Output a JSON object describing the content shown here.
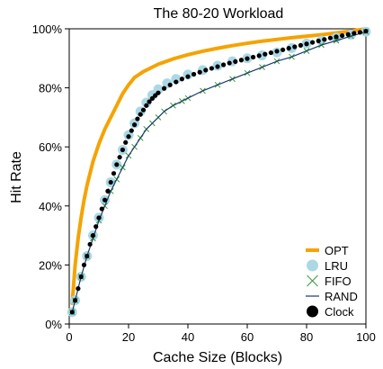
{
  "chart_data": {
    "type": "line",
    "title": "The 80-20 Workload",
    "xlabel": "Cache Size (Blocks)",
    "ylabel": "Hit Rate",
    "xlim": [
      0,
      100
    ],
    "ylim": [
      0,
      100
    ],
    "x_ticks": [
      0,
      20,
      40,
      60,
      80,
      100
    ],
    "x_tick_labels": [
      "0",
      "20",
      "40",
      "60",
      "80",
      "100"
    ],
    "y_ticks": [
      0,
      20,
      40,
      60,
      80,
      100
    ],
    "y_tick_labels": [
      "0%",
      "20%",
      "40%",
      "60%",
      "80%",
      "100%"
    ],
    "grid": false,
    "legend_position": "bottom-right",
    "colors": {
      "OPT": "#f5a300",
      "LRU": "#acd8e6",
      "FIFO": "#3a9a3a",
      "RAND": "#1c3a6b",
      "Clock": "#000000"
    },
    "series": [
      {
        "name": "OPT",
        "style": "thick-line",
        "x": [
          1,
          2,
          3,
          4,
          5,
          6,
          8,
          10,
          12,
          14,
          16,
          18,
          20,
          22,
          25,
          30,
          35,
          40,
          45,
          50,
          55,
          60,
          65,
          70,
          75,
          80,
          85,
          90,
          95,
          100
        ],
        "y": [
          7,
          20,
          29,
          36,
          42,
          47,
          55,
          61,
          66,
          70,
          74,
          78,
          81,
          83.5,
          85.5,
          88,
          89.8,
          91.2,
          92.4,
          93.4,
          94.3,
          95.1,
          95.8,
          96.4,
          97,
          97.5,
          98,
          98.6,
          99.2,
          100
        ]
      },
      {
        "name": "LRU",
        "style": "large-light-dot",
        "x": [
          1,
          2,
          4,
          6,
          8,
          10,
          12,
          14,
          16,
          18,
          20,
          22,
          24,
          26,
          28,
          30,
          33,
          36,
          40,
          45,
          50,
          55,
          60,
          65,
          70,
          75,
          80,
          85,
          90,
          95,
          100
        ],
        "y": [
          4,
          8,
          16,
          23,
          30,
          36,
          42,
          48,
          54,
          59,
          64,
          68,
          72,
          75,
          77.5,
          79.5,
          81.5,
          83,
          84.5,
          86,
          87.5,
          89,
          90,
          91,
          92,
          93.5,
          95,
          96,
          97,
          98,
          99
        ]
      },
      {
        "name": "FIFO",
        "style": "x-marker",
        "x": [
          1,
          2,
          4,
          6,
          8,
          10,
          12,
          14,
          16,
          18,
          20,
          22,
          24,
          26,
          28,
          30,
          32,
          35,
          38,
          40,
          45,
          50,
          55,
          60,
          65,
          70,
          75,
          80,
          85,
          90,
          95,
          100
        ],
        "y": [
          4,
          8,
          16,
          23,
          29,
          35,
          40,
          45,
          49,
          53,
          57,
          60,
          63,
          66,
          68,
          70,
          72,
          74,
          75.5,
          76.5,
          79,
          81,
          83,
          85,
          87,
          89,
          90.5,
          92.5,
          94.5,
          96,
          97.5,
          99
        ]
      },
      {
        "name": "RAND",
        "style": "thin-line",
        "x": [
          1,
          2,
          4,
          6,
          8,
          10,
          12,
          14,
          16,
          18,
          20,
          22,
          24,
          26,
          28,
          30,
          32,
          35,
          38,
          40,
          45,
          50,
          55,
          60,
          65,
          70,
          75,
          80,
          85,
          90,
          95,
          100
        ],
        "y": [
          4,
          8,
          16,
          23,
          29,
          35,
          40,
          45,
          49,
          53,
          57,
          60,
          63,
          66,
          68,
          70,
          72,
          74,
          75.5,
          76.5,
          79,
          81,
          83,
          85,
          87,
          89,
          90.5,
          92.5,
          94.5,
          96,
          97.5,
          99
        ]
      },
      {
        "name": "Clock",
        "style": "dot",
        "x": [
          1,
          2,
          3,
          4,
          5,
          6,
          7,
          8,
          9,
          10,
          11,
          12,
          13,
          14,
          15,
          16,
          17,
          18,
          19,
          20,
          21,
          22,
          23,
          24,
          25,
          26,
          27,
          28,
          29,
          30,
          32,
          34,
          36,
          38,
          40,
          42,
          44,
          46,
          48,
          50,
          52,
          54,
          56,
          58,
          60,
          62,
          64,
          66,
          68,
          70,
          72,
          74,
          76,
          78,
          80,
          82,
          84,
          86,
          88,
          90,
          92,
          94,
          96,
          98,
          100
        ],
        "y": [
          4,
          8,
          12,
          16,
          20,
          23,
          27,
          30,
          33,
          36,
          39,
          42,
          45,
          48,
          51,
          54,
          56.5,
          59,
          61.5,
          63.5,
          65.5,
          67.5,
          69.5,
          71,
          72.5,
          74,
          75.3,
          76.4,
          77.4,
          78.3,
          79.8,
          81,
          82,
          83,
          83.8,
          84.6,
          85.3,
          86,
          86.6,
          87.2,
          87.8,
          88.4,
          88.9,
          89.4,
          89.9,
          90.4,
          90.9,
          91.4,
          91.9,
          92.4,
          92.9,
          93.4,
          93.9,
          94.4,
          94.9,
          95.4,
          95.9,
          96.4,
          96.9,
          97.3,
          97.7,
          98.1,
          98.5,
          98.8,
          99.2
        ]
      }
    ]
  }
}
